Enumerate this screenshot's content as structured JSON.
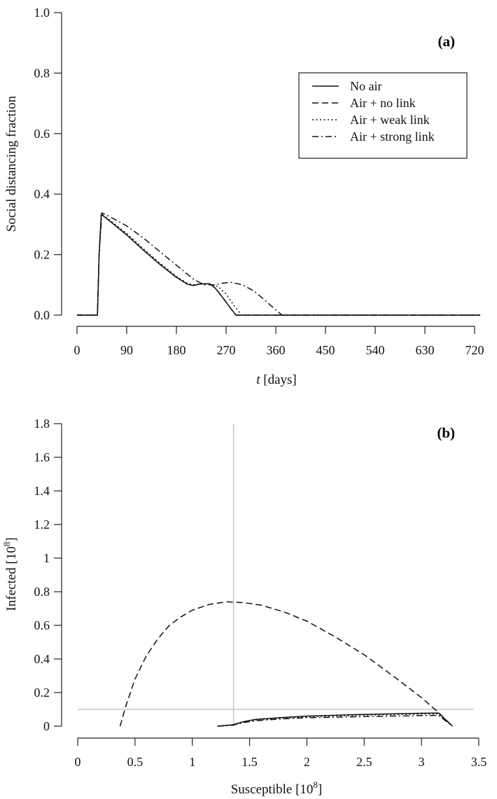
{
  "chart_data": [
    {
      "type": "line",
      "panel_label": "(a)",
      "xlabel_italic": "t",
      "xlabel_rest": " [days]",
      "ylabel": "Social distancing fraction",
      "xlim": [
        0,
        730
      ],
      "ylim": [
        0,
        1.0
      ],
      "xticks": [
        0,
        90,
        180,
        270,
        360,
        450,
        540,
        630,
        720
      ],
      "yticks": [
        "0.0",
        "0.2",
        "0.4",
        "0.6",
        "0.8",
        "1.0"
      ],
      "grid": false,
      "legend_position": "top-right",
      "series": [
        {
          "name": "No air",
          "style": "solid",
          "x": [
            0,
            37,
            40,
            44,
            60,
            90,
            120,
            150,
            180,
            200,
            210,
            225,
            240,
            250,
            265,
            280,
            288,
            730
          ],
          "y": [
            0,
            0,
            0.2,
            0.333,
            0.31,
            0.265,
            0.215,
            0.168,
            0.125,
            0.102,
            0.098,
            0.103,
            0.104,
            0.09,
            0.055,
            0.018,
            0,
            0
          ]
        },
        {
          "name": "Air + no link",
          "style": "dashed",
          "x": [
            0,
            37,
            40,
            44,
            60,
            90,
            120,
            150,
            180,
            200,
            210,
            225,
            240,
            250,
            265,
            280,
            288,
            730
          ],
          "y": [
            0,
            0,
            0.2,
            0.333,
            0.31,
            0.265,
            0.215,
            0.168,
            0.125,
            0.102,
            0.098,
            0.103,
            0.104,
            0.09,
            0.055,
            0.018,
            0,
            0
          ]
        },
        {
          "name": "Air + weak link",
          "style": "dotted",
          "x": [
            0,
            37,
            40,
            44,
            60,
            90,
            120,
            150,
            180,
            200,
            210,
            225,
            240,
            255,
            270,
            285,
            298,
            730
          ],
          "y": [
            0,
            0,
            0.2,
            0.335,
            0.313,
            0.27,
            0.22,
            0.172,
            0.128,
            0.105,
            0.1,
            0.104,
            0.103,
            0.095,
            0.07,
            0.03,
            0,
            0
          ]
        },
        {
          "name": "Air + strong link",
          "style": "dashdot",
          "x": [
            0,
            37,
            40,
            45,
            60,
            90,
            120,
            150,
            180,
            210,
            230,
            250,
            265,
            280,
            300,
            320,
            340,
            355,
            371,
            730
          ],
          "y": [
            0,
            0,
            0.2,
            0.338,
            0.325,
            0.295,
            0.255,
            0.21,
            0.165,
            0.12,
            0.1,
            0.1,
            0.106,
            0.108,
            0.1,
            0.08,
            0.05,
            0.025,
            0,
            0
          ]
        }
      ]
    },
    {
      "type": "line",
      "panel_label": "(b)",
      "xlabel": "Susceptible [10",
      "xlabel_sup": "8",
      "xlabel_end": "]",
      "ylabel": "Infected [10",
      "ylabel_sup": "8",
      "ylabel_end": "]",
      "xlim": [
        0,
        3.5
      ],
      "ylim": [
        0,
        1.8
      ],
      "xticks": [
        "0",
        "0.5",
        "1",
        "1.5",
        "2",
        "2.5",
        "3",
        "3.5"
      ],
      "yticks": [
        "0",
        "0.2",
        "0.4",
        "0.6",
        "0.8",
        "1",
        "1.2",
        "1.4",
        "1.6",
        "1.8"
      ],
      "reference_lines": {
        "vertical_x": 1.36,
        "horizontal_y": 0.1,
        "color": "#bbbbbb"
      },
      "series": [
        {
          "name": "No air",
          "style": "solid",
          "x": [
            1.22,
            1.35,
            1.45,
            1.55,
            1.75,
            2.0,
            2.5,
            3.0,
            3.15,
            3.27
          ],
          "y": [
            0,
            0.008,
            0.027,
            0.04,
            0.05,
            0.06,
            0.07,
            0.077,
            0.078,
            0
          ]
        },
        {
          "name": "Air + no link",
          "style": "dashed",
          "x": [
            0.37,
            0.42,
            0.5,
            0.6,
            0.7,
            0.8,
            0.9,
            1.0,
            1.15,
            1.3,
            1.45,
            1.6,
            1.8,
            2.0,
            2.25,
            2.5,
            2.75,
            3.0,
            3.15,
            3.27
          ],
          "y": [
            0,
            0.12,
            0.28,
            0.42,
            0.52,
            0.6,
            0.65,
            0.69,
            0.725,
            0.74,
            0.735,
            0.72,
            0.68,
            0.625,
            0.53,
            0.425,
            0.3,
            0.17,
            0.08,
            0
          ]
        },
        {
          "name": "Air + weak link",
          "style": "dotted",
          "x": [
            1.22,
            1.35,
            1.45,
            1.55,
            1.75,
            2.0,
            2.5,
            3.0,
            3.15,
            3.27
          ],
          "y": [
            0,
            0.007,
            0.025,
            0.037,
            0.047,
            0.056,
            0.066,
            0.072,
            0.073,
            0
          ]
        },
        {
          "name": "Air + strong link",
          "style": "dashdot",
          "x": [
            1.22,
            1.35,
            1.45,
            1.55,
            1.75,
            2.0,
            2.5,
            3.0,
            3.15,
            3.27
          ],
          "y": [
            0,
            0.005,
            0.022,
            0.032,
            0.042,
            0.05,
            0.057,
            0.063,
            0.064,
            0
          ]
        }
      ]
    }
  ]
}
